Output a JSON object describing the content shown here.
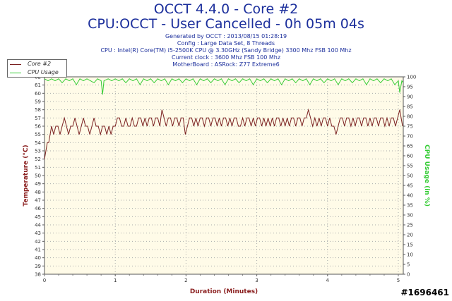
{
  "header": {
    "title": "OCCT 4.4.0 - Core #2",
    "subtitle": "CPU:OCCT - User Cancelled - 0h 05m 04s",
    "info_lines": [
      "Generated by OCCT : 2013/08/15 01:28:19",
      "Config : Large Data Set, 8 Threads",
      "CPU : Intel(R) Core(TM) i5-2500K CPU @ 3.30GHz (Sandy Bridge) 3300 Mhz FSB 100 Mhz",
      "Current clock : 3600 Mhz FSB 100 Mhz",
      "MotherBoard : ASRock: Z77 Extreme6"
    ]
  },
  "watermark": "#1696461",
  "colors": {
    "plot_bg": "#fffbe8",
    "temp_series": "#7a2020",
    "cpu_series": "#33cc33",
    "title": "#1c2f9c",
    "temp_axis": "#8b2020",
    "cpu_axis": "#33cc33"
  },
  "chart_data": {
    "type": "line",
    "xlabel": "Duration (Minutes)",
    "ylabel_left": "Temperature (°C)",
    "ylabel_right": "CPU Usage (in %)",
    "xlim": [
      0,
      5.07
    ],
    "ylim_left": [
      38,
      62
    ],
    "ylim_right": [
      0,
      100
    ],
    "x_ticks": [
      "0",
      "1",
      "2",
      "3",
      "4",
      "5"
    ],
    "y_ticks_left": [
      "38",
      "39",
      "40",
      "41",
      "42",
      "43",
      "44",
      "45",
      "46",
      "47",
      "48",
      "49",
      "50",
      "51",
      "52",
      "53",
      "54",
      "55",
      "56",
      "57",
      "58",
      "59",
      "60",
      "61",
      "62"
    ],
    "y_ticks_right": [
      "0",
      "5",
      "10",
      "15",
      "20",
      "25",
      "30",
      "35",
      "40",
      "45",
      "50",
      "55",
      "60",
      "65",
      "70",
      "75",
      "80",
      "85",
      "90",
      "95",
      "100"
    ],
    "grid": true,
    "legend_position": "top-left",
    "series": [
      {
        "name": "Core #2",
        "axis": "left",
        "points": [
          [
            0,
            52
          ],
          [
            0.02,
            53
          ],
          [
            0.04,
            54
          ],
          [
            0.06,
            54
          ],
          [
            0.08,
            55
          ],
          [
            0.1,
            56
          ],
          [
            0.13,
            55
          ],
          [
            0.16,
            56
          ],
          [
            0.19,
            56
          ],
          [
            0.22,
            55
          ],
          [
            0.25,
            56
          ],
          [
            0.28,
            57
          ],
          [
            0.31,
            56
          ],
          [
            0.34,
            55
          ],
          [
            0.37,
            56
          ],
          [
            0.4,
            56
          ],
          [
            0.43,
            57
          ],
          [
            0.46,
            56
          ],
          [
            0.49,
            55
          ],
          [
            0.52,
            56
          ],
          [
            0.55,
            57
          ],
          [
            0.58,
            56
          ],
          [
            0.61,
            56
          ],
          [
            0.64,
            55
          ],
          [
            0.67,
            56
          ],
          [
            0.7,
            57
          ],
          [
            0.73,
            56
          ],
          [
            0.76,
            56
          ],
          [
            0.79,
            55
          ],
          [
            0.82,
            56
          ],
          [
            0.85,
            56
          ],
          [
            0.88,
            55
          ],
          [
            0.91,
            56
          ],
          [
            0.94,
            55
          ],
          [
            0.97,
            56
          ],
          [
            1.0,
            56
          ],
          [
            1.03,
            57
          ],
          [
            1.06,
            57
          ],
          [
            1.09,
            56
          ],
          [
            1.12,
            56
          ],
          [
            1.15,
            57
          ],
          [
            1.18,
            56
          ],
          [
            1.21,
            56
          ],
          [
            1.24,
            57
          ],
          [
            1.27,
            56
          ],
          [
            1.3,
            56
          ],
          [
            1.33,
            57
          ],
          [
            1.36,
            57
          ],
          [
            1.39,
            56
          ],
          [
            1.42,
            57
          ],
          [
            1.45,
            56
          ],
          [
            1.48,
            57
          ],
          [
            1.51,
            57
          ],
          [
            1.54,
            56
          ],
          [
            1.57,
            57
          ],
          [
            1.6,
            57
          ],
          [
            1.63,
            56
          ],
          [
            1.66,
            58
          ],
          [
            1.69,
            57
          ],
          [
            1.72,
            56
          ],
          [
            1.75,
            57
          ],
          [
            1.78,
            57
          ],
          [
            1.81,
            56
          ],
          [
            1.84,
            57
          ],
          [
            1.87,
            57
          ],
          [
            1.9,
            56
          ],
          [
            1.93,
            57
          ],
          [
            1.96,
            57
          ],
          [
            1.99,
            55
          ],
          [
            2.02,
            56
          ],
          [
            2.05,
            57
          ],
          [
            2.08,
            57
          ],
          [
            2.11,
            56
          ],
          [
            2.14,
            57
          ],
          [
            2.17,
            56
          ],
          [
            2.2,
            57
          ],
          [
            2.23,
            57
          ],
          [
            2.26,
            56
          ],
          [
            2.29,
            57
          ],
          [
            2.32,
            57
          ],
          [
            2.35,
            56
          ],
          [
            2.38,
            57
          ],
          [
            2.41,
            57
          ],
          [
            2.44,
            56
          ],
          [
            2.47,
            57
          ],
          [
            2.5,
            56
          ],
          [
            2.53,
            57
          ],
          [
            2.56,
            57
          ],
          [
            2.59,
            56
          ],
          [
            2.62,
            57
          ],
          [
            2.65,
            56
          ],
          [
            2.68,
            57
          ],
          [
            2.71,
            57
          ],
          [
            2.74,
            56
          ],
          [
            2.77,
            56
          ],
          [
            2.8,
            57
          ],
          [
            2.83,
            56
          ],
          [
            2.86,
            57
          ],
          [
            2.89,
            57
          ],
          [
            2.92,
            56
          ],
          [
            2.95,
            57
          ],
          [
            2.98,
            56
          ],
          [
            3.01,
            57
          ],
          [
            3.04,
            57
          ],
          [
            3.07,
            56
          ],
          [
            3.1,
            57
          ],
          [
            3.13,
            56
          ],
          [
            3.16,
            57
          ],
          [
            3.19,
            56
          ],
          [
            3.22,
            57
          ],
          [
            3.25,
            56
          ],
          [
            3.28,
            57
          ],
          [
            3.31,
            57
          ],
          [
            3.34,
            56
          ],
          [
            3.37,
            57
          ],
          [
            3.4,
            56
          ],
          [
            3.43,
            57
          ],
          [
            3.46,
            56
          ],
          [
            3.49,
            57
          ],
          [
            3.52,
            57
          ],
          [
            3.55,
            56
          ],
          [
            3.58,
            57
          ],
          [
            3.61,
            57
          ],
          [
            3.64,
            56
          ],
          [
            3.67,
            57
          ],
          [
            3.7,
            57
          ],
          [
            3.73,
            58
          ],
          [
            3.76,
            57
          ],
          [
            3.79,
            56
          ],
          [
            3.82,
            57
          ],
          [
            3.85,
            56
          ],
          [
            3.88,
            57
          ],
          [
            3.91,
            56
          ],
          [
            3.94,
            57
          ],
          [
            3.97,
            57
          ],
          [
            4.0,
            56
          ],
          [
            4.03,
            57
          ],
          [
            4.06,
            56
          ],
          [
            4.09,
            56
          ],
          [
            4.12,
            55
          ],
          [
            4.15,
            56
          ],
          [
            4.18,
            57
          ],
          [
            4.21,
            57
          ],
          [
            4.24,
            56
          ],
          [
            4.27,
            57
          ],
          [
            4.3,
            57
          ],
          [
            4.33,
            56
          ],
          [
            4.36,
            57
          ],
          [
            4.39,
            56
          ],
          [
            4.42,
            57
          ],
          [
            4.45,
            57
          ],
          [
            4.48,
            56
          ],
          [
            4.51,
            57
          ],
          [
            4.54,
            57
          ],
          [
            4.57,
            56
          ],
          [
            4.6,
            57
          ],
          [
            4.63,
            56
          ],
          [
            4.66,
            57
          ],
          [
            4.69,
            57
          ],
          [
            4.72,
            56
          ],
          [
            4.75,
            57
          ],
          [
            4.78,
            57
          ],
          [
            4.81,
            56
          ],
          [
            4.84,
            57
          ],
          [
            4.87,
            56
          ],
          [
            4.9,
            57
          ],
          [
            4.93,
            57
          ],
          [
            4.96,
            56
          ],
          [
            4.99,
            57
          ],
          [
            5.02,
            58
          ],
          [
            5.04,
            57
          ],
          [
            5.06,
            56
          ]
        ]
      },
      {
        "name": "CPU Usage",
        "axis": "right",
        "points": [
          [
            0,
            99
          ],
          [
            0.05,
            98
          ],
          [
            0.1,
            99
          ],
          [
            0.15,
            98
          ],
          [
            0.2,
            99
          ],
          [
            0.25,
            97
          ],
          [
            0.3,
            99
          ],
          [
            0.35,
            98
          ],
          [
            0.4,
            99
          ],
          [
            0.45,
            96
          ],
          [
            0.5,
            99
          ],
          [
            0.55,
            98
          ],
          [
            0.6,
            99
          ],
          [
            0.65,
            98
          ],
          [
            0.7,
            97
          ],
          [
            0.75,
            99
          ],
          [
            0.8,
            98
          ],
          [
            0.82,
            91
          ],
          [
            0.84,
            98
          ],
          [
            0.9,
            99
          ],
          [
            0.95,
            98
          ],
          [
            1.0,
            99
          ],
          [
            1.05,
            98
          ],
          [
            1.1,
            99
          ],
          [
            1.15,
            97
          ],
          [
            1.2,
            99
          ],
          [
            1.25,
            98
          ],
          [
            1.3,
            99
          ],
          [
            1.35,
            96
          ],
          [
            1.4,
            99
          ],
          [
            1.45,
            98
          ],
          [
            1.5,
            99
          ],
          [
            1.55,
            97
          ],
          [
            1.6,
            99
          ],
          [
            1.65,
            98
          ],
          [
            1.7,
            99
          ],
          [
            1.75,
            96
          ],
          [
            1.8,
            99
          ],
          [
            1.85,
            98
          ],
          [
            1.9,
            99
          ],
          [
            1.95,
            97
          ],
          [
            2.0,
            99
          ],
          [
            2.05,
            98
          ],
          [
            2.1,
            99
          ],
          [
            2.15,
            96
          ],
          [
            2.2,
            99
          ],
          [
            2.25,
            98
          ],
          [
            2.3,
            99
          ],
          [
            2.35,
            97
          ],
          [
            2.4,
            99
          ],
          [
            2.45,
            98
          ],
          [
            2.5,
            99
          ],
          [
            2.55,
            96
          ],
          [
            2.6,
            99
          ],
          [
            2.65,
            98
          ],
          [
            2.7,
            99
          ],
          [
            2.75,
            97
          ],
          [
            2.8,
            99
          ],
          [
            2.85,
            98
          ],
          [
            2.9,
            99
          ],
          [
            2.95,
            96
          ],
          [
            3.0,
            99
          ],
          [
            3.05,
            98
          ],
          [
            3.1,
            99
          ],
          [
            3.15,
            97
          ],
          [
            3.2,
            99
          ],
          [
            3.25,
            98
          ],
          [
            3.3,
            99
          ],
          [
            3.35,
            96
          ],
          [
            3.4,
            99
          ],
          [
            3.45,
            98
          ],
          [
            3.5,
            99
          ],
          [
            3.55,
            97
          ],
          [
            3.6,
            99
          ],
          [
            3.65,
            98
          ],
          [
            3.7,
            99
          ],
          [
            3.75,
            96
          ],
          [
            3.8,
            99
          ],
          [
            3.85,
            98
          ],
          [
            3.9,
            99
          ],
          [
            3.95,
            97
          ],
          [
            4.0,
            99
          ],
          [
            4.05,
            98
          ],
          [
            4.1,
            99
          ],
          [
            4.15,
            96
          ],
          [
            4.2,
            99
          ],
          [
            4.25,
            98
          ],
          [
            4.3,
            99
          ],
          [
            4.35,
            97
          ],
          [
            4.4,
            99
          ],
          [
            4.45,
            98
          ],
          [
            4.5,
            99
          ],
          [
            4.55,
            96
          ],
          [
            4.6,
            99
          ],
          [
            4.65,
            98
          ],
          [
            4.7,
            99
          ],
          [
            4.75,
            97
          ],
          [
            4.8,
            99
          ],
          [
            4.85,
            98
          ],
          [
            4.9,
            99
          ],
          [
            4.95,
            96
          ],
          [
            5.0,
            98
          ],
          [
            5.02,
            92
          ],
          [
            5.05,
            98
          ],
          [
            5.07,
            97
          ]
        ]
      }
    ]
  }
}
